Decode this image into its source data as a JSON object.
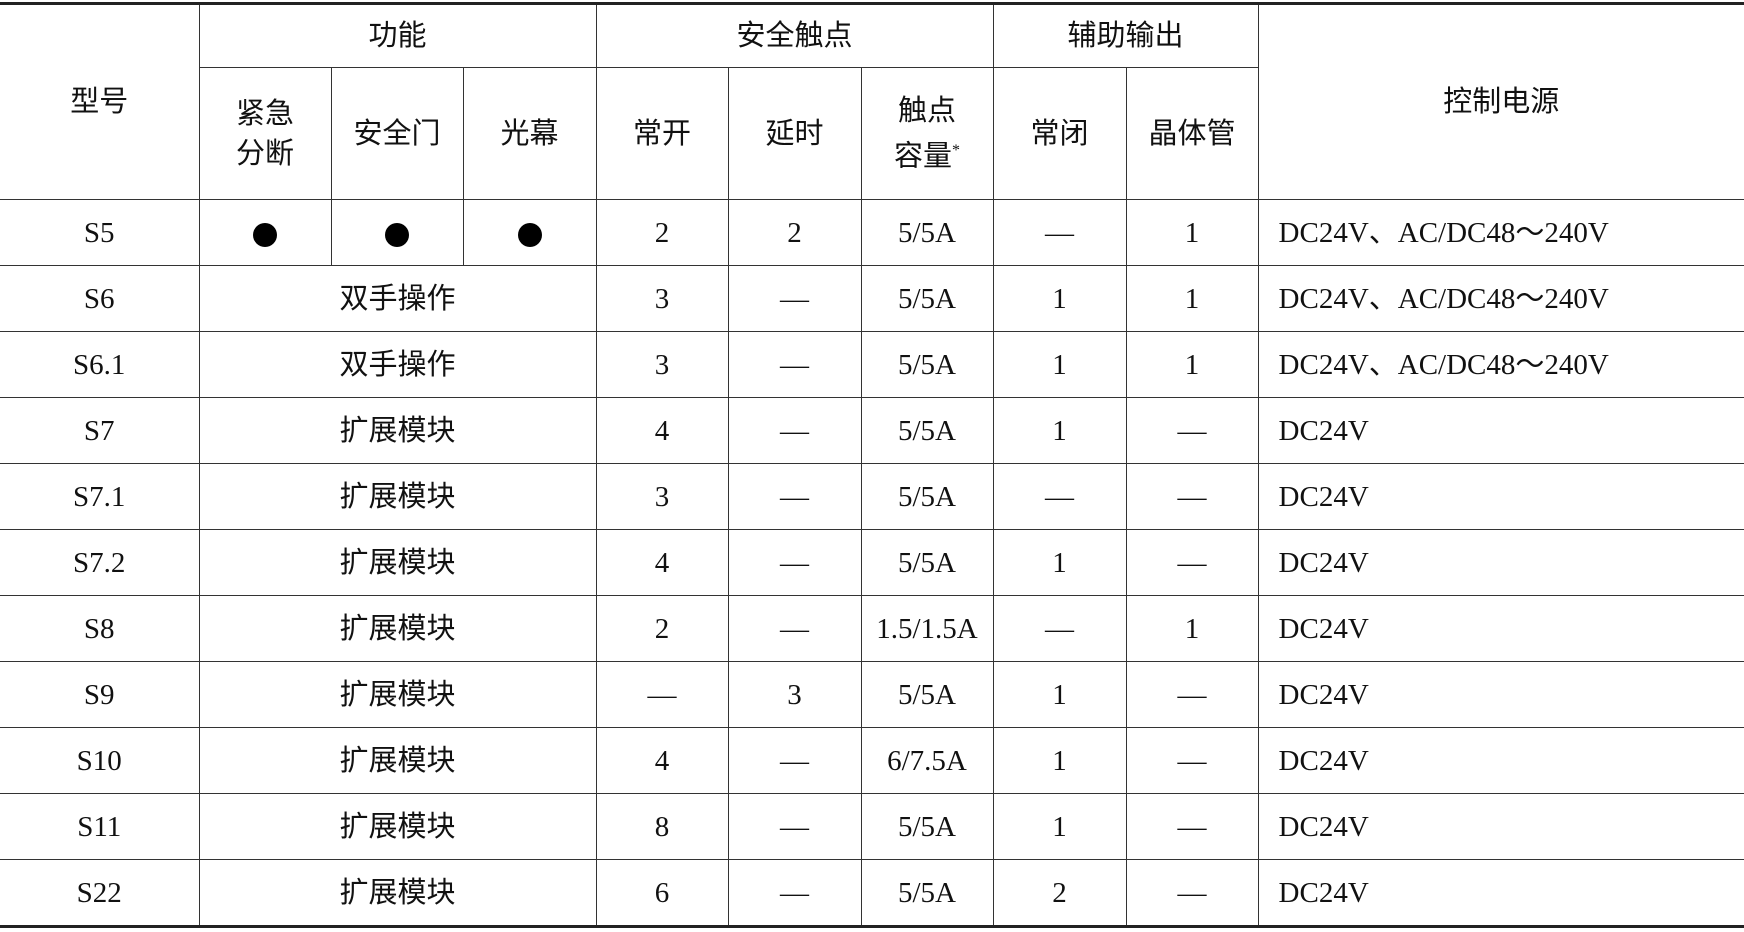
{
  "header": {
    "model": "型号",
    "function": "功能",
    "function_cols": [
      "紧急\n分断",
      "安全门",
      "光幕"
    ],
    "safety_contacts": "安全触点",
    "safety_cols": [
      "常开",
      "延时",
      "触点\n容量"
    ],
    "capacity_mark": "*",
    "aux_output": "辅助输出",
    "aux_cols": [
      "常闭",
      "晶体管"
    ],
    "control_power": "控制电源"
  },
  "rows": [
    {
      "model": "S5",
      "function": [
        "●",
        "●",
        "●"
      ],
      "no": "2",
      "delay": "2",
      "capacity": "5/5A",
      "nc": "—",
      "transistor": "1",
      "power": "DC24V、AC/DC48～240V"
    },
    {
      "model": "S6",
      "function": "双手操作",
      "no": "3",
      "delay": "—",
      "capacity": "5/5A",
      "nc": "1",
      "transistor": "1",
      "power": "DC24V、AC/DC48～240V"
    },
    {
      "model": "S6.1",
      "function": "双手操作",
      "no": "3",
      "delay": "—",
      "capacity": "5/5A",
      "nc": "1",
      "transistor": "1",
      "power": "DC24V、AC/DC48～240V"
    },
    {
      "model": "S7",
      "function": "扩展模块",
      "no": "4",
      "delay": "—",
      "capacity": "5/5A",
      "nc": "1",
      "transistor": "—",
      "power": "DC24V"
    },
    {
      "model": "S7.1",
      "function": "扩展模块",
      "no": "3",
      "delay": "—",
      "capacity": "5/5A",
      "nc": "—",
      "transistor": "—",
      "power": "DC24V"
    },
    {
      "model": "S7.2",
      "function": "扩展模块",
      "no": "4",
      "delay": "—",
      "capacity": "5/5A",
      "nc": "1",
      "transistor": "—",
      "power": "DC24V"
    },
    {
      "model": "S8",
      "function": "扩展模块",
      "no": "2",
      "delay": "—",
      "capacity": "1.5/1.5A",
      "nc": "—",
      "transistor": "1",
      "power": "DC24V"
    },
    {
      "model": "S9",
      "function": "扩展模块",
      "no": "—",
      "delay": "3",
      "capacity": "5/5A",
      "nc": "1",
      "transistor": "—",
      "power": "DC24V"
    },
    {
      "model": "S10",
      "function": "扩展模块",
      "no": "4",
      "delay": "—",
      "capacity": "6/7.5A",
      "nc": "1",
      "transistor": "—",
      "power": "DC24V"
    },
    {
      "model": "S11",
      "function": "扩展模块",
      "no": "8",
      "delay": "—",
      "capacity": "5/5A",
      "nc": "1",
      "transistor": "—",
      "power": "DC24V"
    },
    {
      "model": "S22",
      "function": "扩展模块",
      "no": "6",
      "delay": "—",
      "capacity": "5/5A",
      "nc": "2",
      "transistor": "—",
      "power": "DC24V"
    }
  ]
}
